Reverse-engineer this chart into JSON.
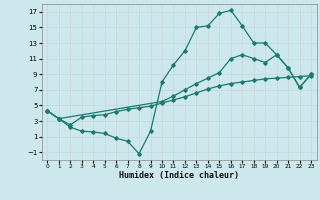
{
  "xlabel": "Humidex (Indice chaleur)",
  "bg_color": "#cde8ec",
  "grid_color": "#b8d8dc",
  "line_color": "#1a7a6e",
  "xlim": [
    -0.5,
    23.5
  ],
  "ylim": [
    -2,
    18
  ],
  "xticks": [
    0,
    1,
    2,
    3,
    4,
    5,
    6,
    7,
    8,
    9,
    10,
    11,
    12,
    13,
    14,
    15,
    16,
    17,
    18,
    19,
    20,
    21,
    22,
    23
  ],
  "yticks": [
    -1,
    1,
    3,
    5,
    7,
    9,
    11,
    13,
    15,
    17
  ],
  "line1_x": [
    0,
    1,
    2,
    3,
    4,
    5,
    6,
    7,
    8,
    9,
    10,
    11,
    12,
    13,
    14,
    15,
    16,
    17,
    18,
    19,
    20,
    21,
    22,
    23
  ],
  "line1_y": [
    4.3,
    3.3,
    2.2,
    1.7,
    1.6,
    1.4,
    0.8,
    0.4,
    -1.2,
    1.7,
    8.0,
    10.2,
    12.0,
    15.0,
    15.2,
    16.8,
    17.2,
    15.2,
    13.0,
    13.0,
    11.5,
    9.8,
    7.3,
    9.0
  ],
  "line2_x": [
    0,
    1,
    10,
    11,
    12,
    13,
    14,
    15,
    16,
    17,
    18,
    19,
    20,
    21,
    22,
    23
  ],
  "line2_y": [
    4.3,
    3.3,
    5.5,
    6.2,
    7.0,
    7.8,
    8.5,
    9.2,
    11.0,
    11.5,
    11.0,
    10.5,
    11.5,
    9.8,
    7.3,
    9.0
  ],
  "line3_x": [
    0,
    1,
    2,
    3,
    4,
    5,
    6,
    7,
    8,
    9,
    10,
    11,
    12,
    13,
    14,
    15,
    16,
    17,
    18,
    19,
    20,
    21,
    22,
    23
  ],
  "line3_y": [
    4.3,
    3.3,
    2.5,
    3.5,
    3.7,
    3.8,
    4.2,
    4.5,
    4.7,
    4.9,
    5.3,
    5.7,
    6.1,
    6.6,
    7.1,
    7.5,
    7.8,
    8.0,
    8.2,
    8.4,
    8.5,
    8.6,
    8.7,
    8.8
  ]
}
